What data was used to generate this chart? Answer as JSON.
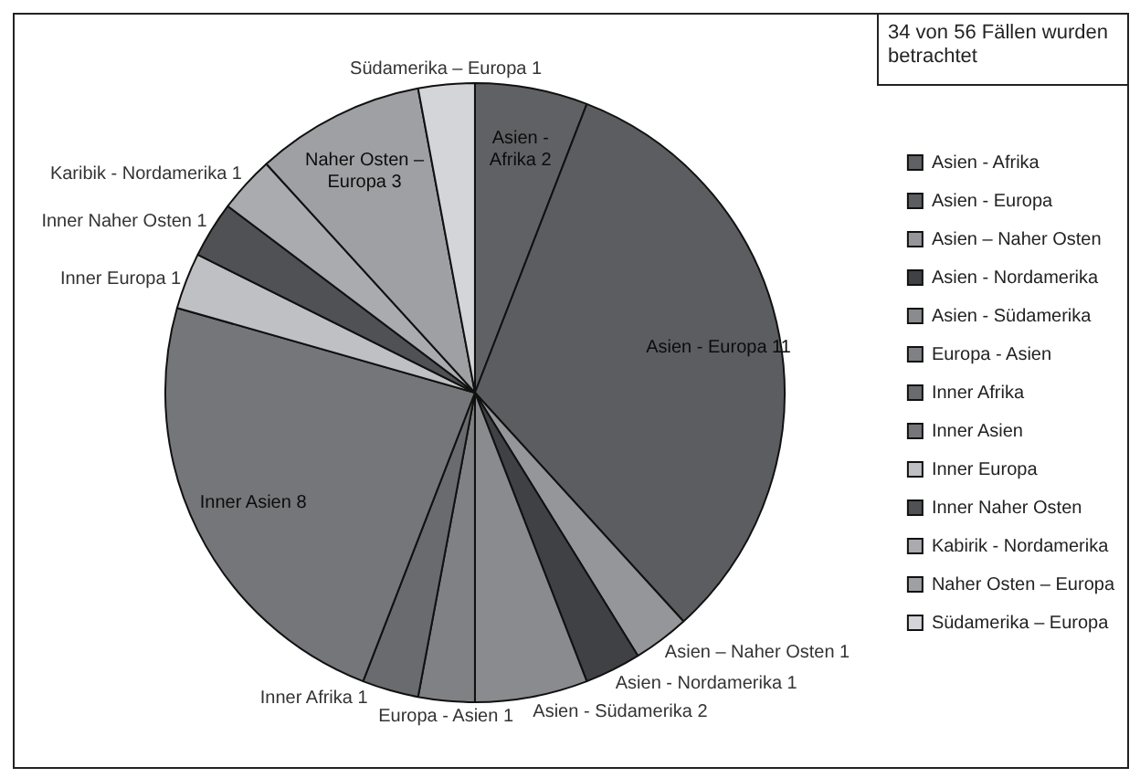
{
  "chart_data": {
    "type": "pie",
    "categories": [
      "Asien - Afrika",
      "Asien - Europa",
      "Asien – Naher Osten",
      "Asien - Nordamerika",
      "Asien - Südamerika",
      "Europa - Asien",
      "Inner Afrika",
      "Inner Asien",
      "Inner Europa",
      "Inner Naher Osten",
      "Kabirik - Nordamerika",
      "Naher Osten – Europa",
      "Südamerika – Europa"
    ],
    "values": [
      2,
      11,
      1,
      1,
      2,
      1,
      1,
      8,
      1,
      1,
      1,
      3,
      1
    ],
    "colors": [
      "#606165",
      "#5c5d61",
      "#95969a",
      "#404144",
      "#8a8b8f",
      "#808185",
      "#6a6b6f",
      "#757679",
      "#bfc0c3",
      "#505155",
      "#aaabaf",
      "#9fa0a4",
      "#d4d5d8"
    ],
    "value_labels": [
      "Asien - Afrika 2",
      "Asien - Europa 11",
      "Asien – Naher Osten 1",
      "Asien - Nordamerika 1",
      "Asien - Südamerika 2",
      "Europa - Asien 1",
      "Inner Afrika 1",
      "Inner Asien 8",
      "Inner Europa 1",
      "Inner Naher Osten 1",
      "Karibik - Nordamerika 1",
      "Naher Osten – Europa 3",
      "Südamerika – Europa 1"
    ],
    "legend": "right",
    "annotations": [
      "34 von 56 Fällen wurden betrachtet"
    ]
  }
}
